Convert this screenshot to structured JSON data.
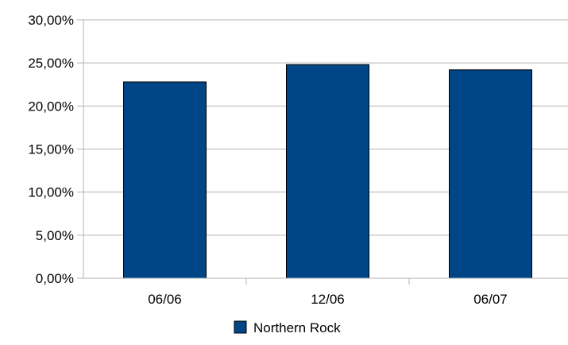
{
  "chart_data": {
    "type": "bar",
    "categories": [
      "06/06",
      "12/06",
      "06/07"
    ],
    "series": [
      {
        "name": "Northern Rock",
        "values": [
          0.228,
          0.248,
          0.242
        ],
        "color": "#004586"
      }
    ],
    "y_ticks": [
      "0,00%",
      "5,00%",
      "10,00%",
      "15,00%",
      "20,00%",
      "25,00%",
      "30,00%"
    ],
    "ylim": [
      0,
      0.3
    ],
    "grid": true,
    "legend_position": "bottom-center",
    "title": "",
    "xlabel": "",
    "ylabel": ""
  }
}
